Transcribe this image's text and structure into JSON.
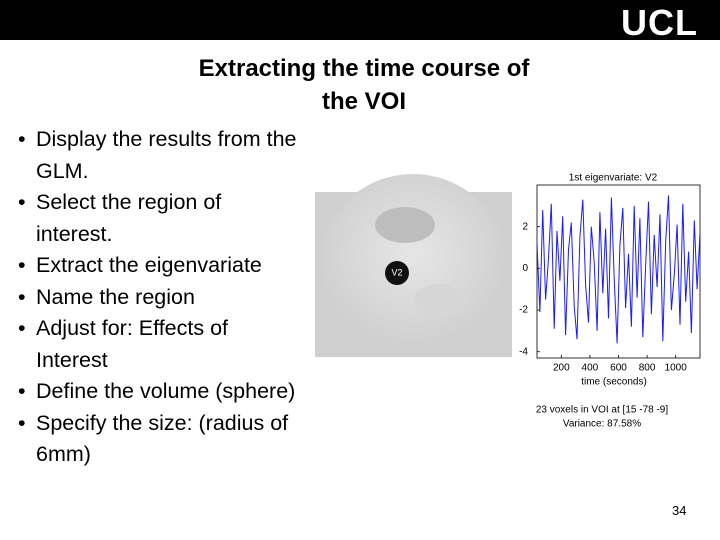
{
  "header": {
    "logo": "UCL"
  },
  "title": [
    "Extracting the time course of",
    "the  VOI"
  ],
  "bullets": [
    "Display the results from the GLM.",
    "Select the region of interest.",
    "Extract the eigenvariate",
    "Name the region",
    "Adjust for: Effects of Interest",
    "Define the volume (sphere)",
    "Specify the size: (radius of 6mm)"
  ],
  "figure": {
    "image_label": "V2",
    "plot": {
      "type": "line",
      "title": "1st eigenvariate: V2",
      "xlabel": "time (seconds)",
      "color": "#1a1aff",
      "x": [
        30,
        50,
        70,
        90,
        110,
        130,
        150,
        170,
        190,
        210,
        230,
        250,
        270,
        290,
        310,
        330,
        350,
        370,
        390,
        410,
        430,
        450,
        470,
        490,
        510,
        530,
        550,
        570,
        590,
        610,
        630,
        650,
        670,
        690,
        710,
        730,
        750,
        770,
        790,
        810,
        830,
        850,
        870,
        890,
        910,
        930,
        950,
        970,
        990,
        1010,
        1030,
        1050,
        1070,
        1090,
        1110,
        1130,
        1150,
        1170
      ],
      "values": [
        1.2,
        -2.1,
        2.8,
        -1.5,
        0.4,
        3.1,
        -2.9,
        1.8,
        -0.6,
        2.5,
        -3.2,
        0.9,
        2.2,
        -1.8,
        -3.4,
        1.5,
        3.3,
        -0.8,
        -2.6,
        2.0,
        0.3,
        -3.0,
        2.7,
        -1.2,
        1.9,
        -2.4,
        3.4,
        -0.5,
        -3.6,
        1.1,
        2.9,
        -1.9,
        0.7,
        -2.8,
        3.0,
        -1.4,
        2.4,
        -3.3,
        0.2,
        3.2,
        -2.2,
        1.6,
        -0.9,
        2.6,
        -3.5,
        1.3,
        3.5,
        -2.0,
        -0.3,
        2.1,
        -2.7,
        3.1,
        -1.6,
        0.8,
        -3.1,
        2.3,
        -1.0,
        1.7
      ],
      "xlim": [
        30,
        1170
      ],
      "ylim": [
        -4.3,
        4
      ],
      "xticks": [
        200,
        400,
        600,
        800,
        1000
      ],
      "yticks": [
        2,
        0,
        -2,
        -4
      ]
    },
    "caption": [
      "23 voxels in VOI at [15 -78  -9]",
      "Variance: 87.58%"
    ]
  },
  "page_number": "34"
}
